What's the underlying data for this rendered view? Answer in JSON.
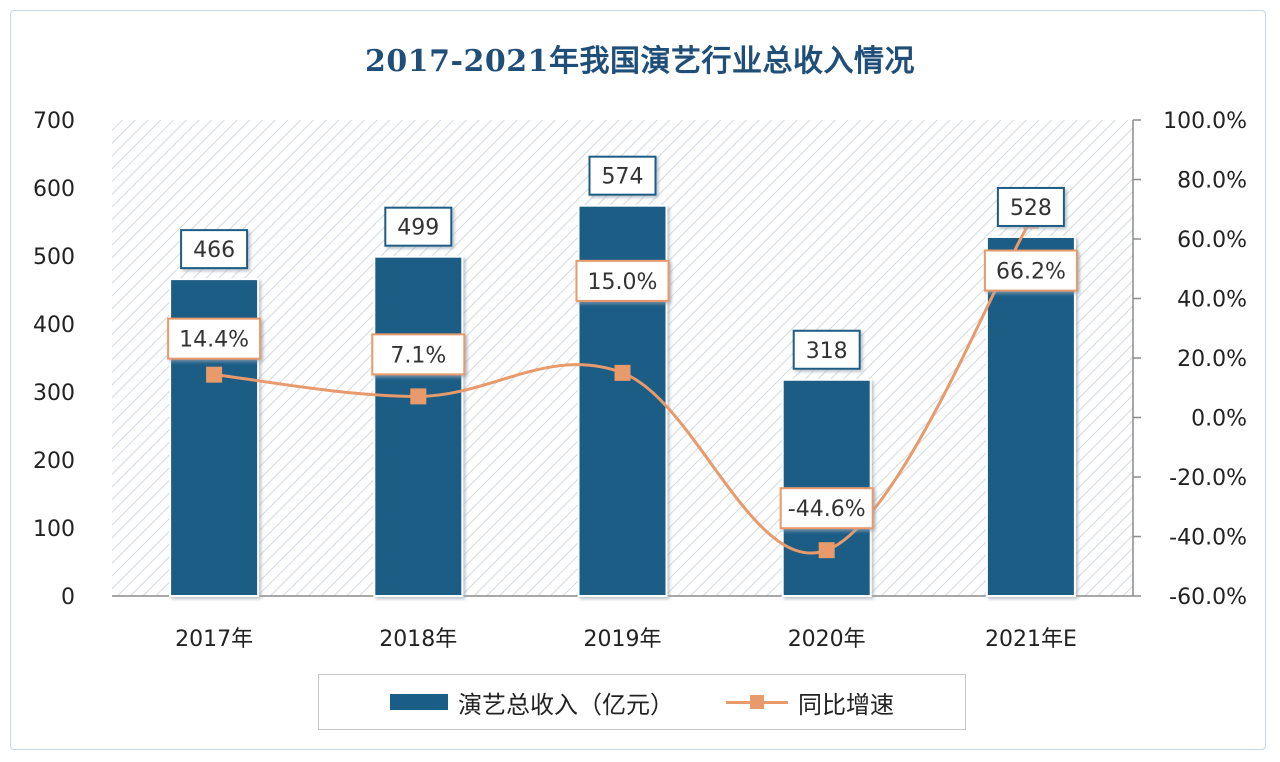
{
  "chart_data": {
    "type": "bar",
    "title": "2017-2021年我国演艺行业总收入情况",
    "categories": [
      "2017年",
      "2018年",
      "2019年",
      "2020年",
      "2021年E"
    ],
    "series": [
      {
        "name": "演艺总收入（亿元）",
        "type": "bar",
        "axis": "left",
        "values": [
          466,
          499,
          574,
          318,
          528
        ],
        "labels": [
          "466",
          "499",
          "574",
          "318",
          "528"
        ],
        "color": "#1a5d86"
      },
      {
        "name": "同比增速",
        "type": "line",
        "axis": "right",
        "values": [
          14.4,
          7.1,
          15.0,
          -44.6,
          66.2
        ],
        "labels": [
          "14.4%",
          "7.1%",
          "15.0%",
          "-44.6%",
          "66.2%"
        ],
        "color": "#e89a6b"
      }
    ],
    "left_axis": {
      "ylim": [
        0,
        700
      ],
      "ticks": [
        0,
        100,
        200,
        300,
        400,
        500,
        600,
        700
      ],
      "tick_labels": [
        "0",
        "100",
        "200",
        "300",
        "400",
        "500",
        "600",
        "700"
      ]
    },
    "right_axis": {
      "ylim": [
        -60,
        100
      ],
      "ticks": [
        -60,
        -40,
        -20,
        0,
        20,
        40,
        60,
        80,
        100
      ],
      "tick_labels": [
        "-60.0%",
        "-40.0%",
        "-20.0%",
        "0.0%",
        "20.0%",
        "40.0%",
        "60.0%",
        "80.0%",
        "100.0%"
      ]
    },
    "legend_position": "bottom",
    "plot_background": "diagonal hatch"
  }
}
